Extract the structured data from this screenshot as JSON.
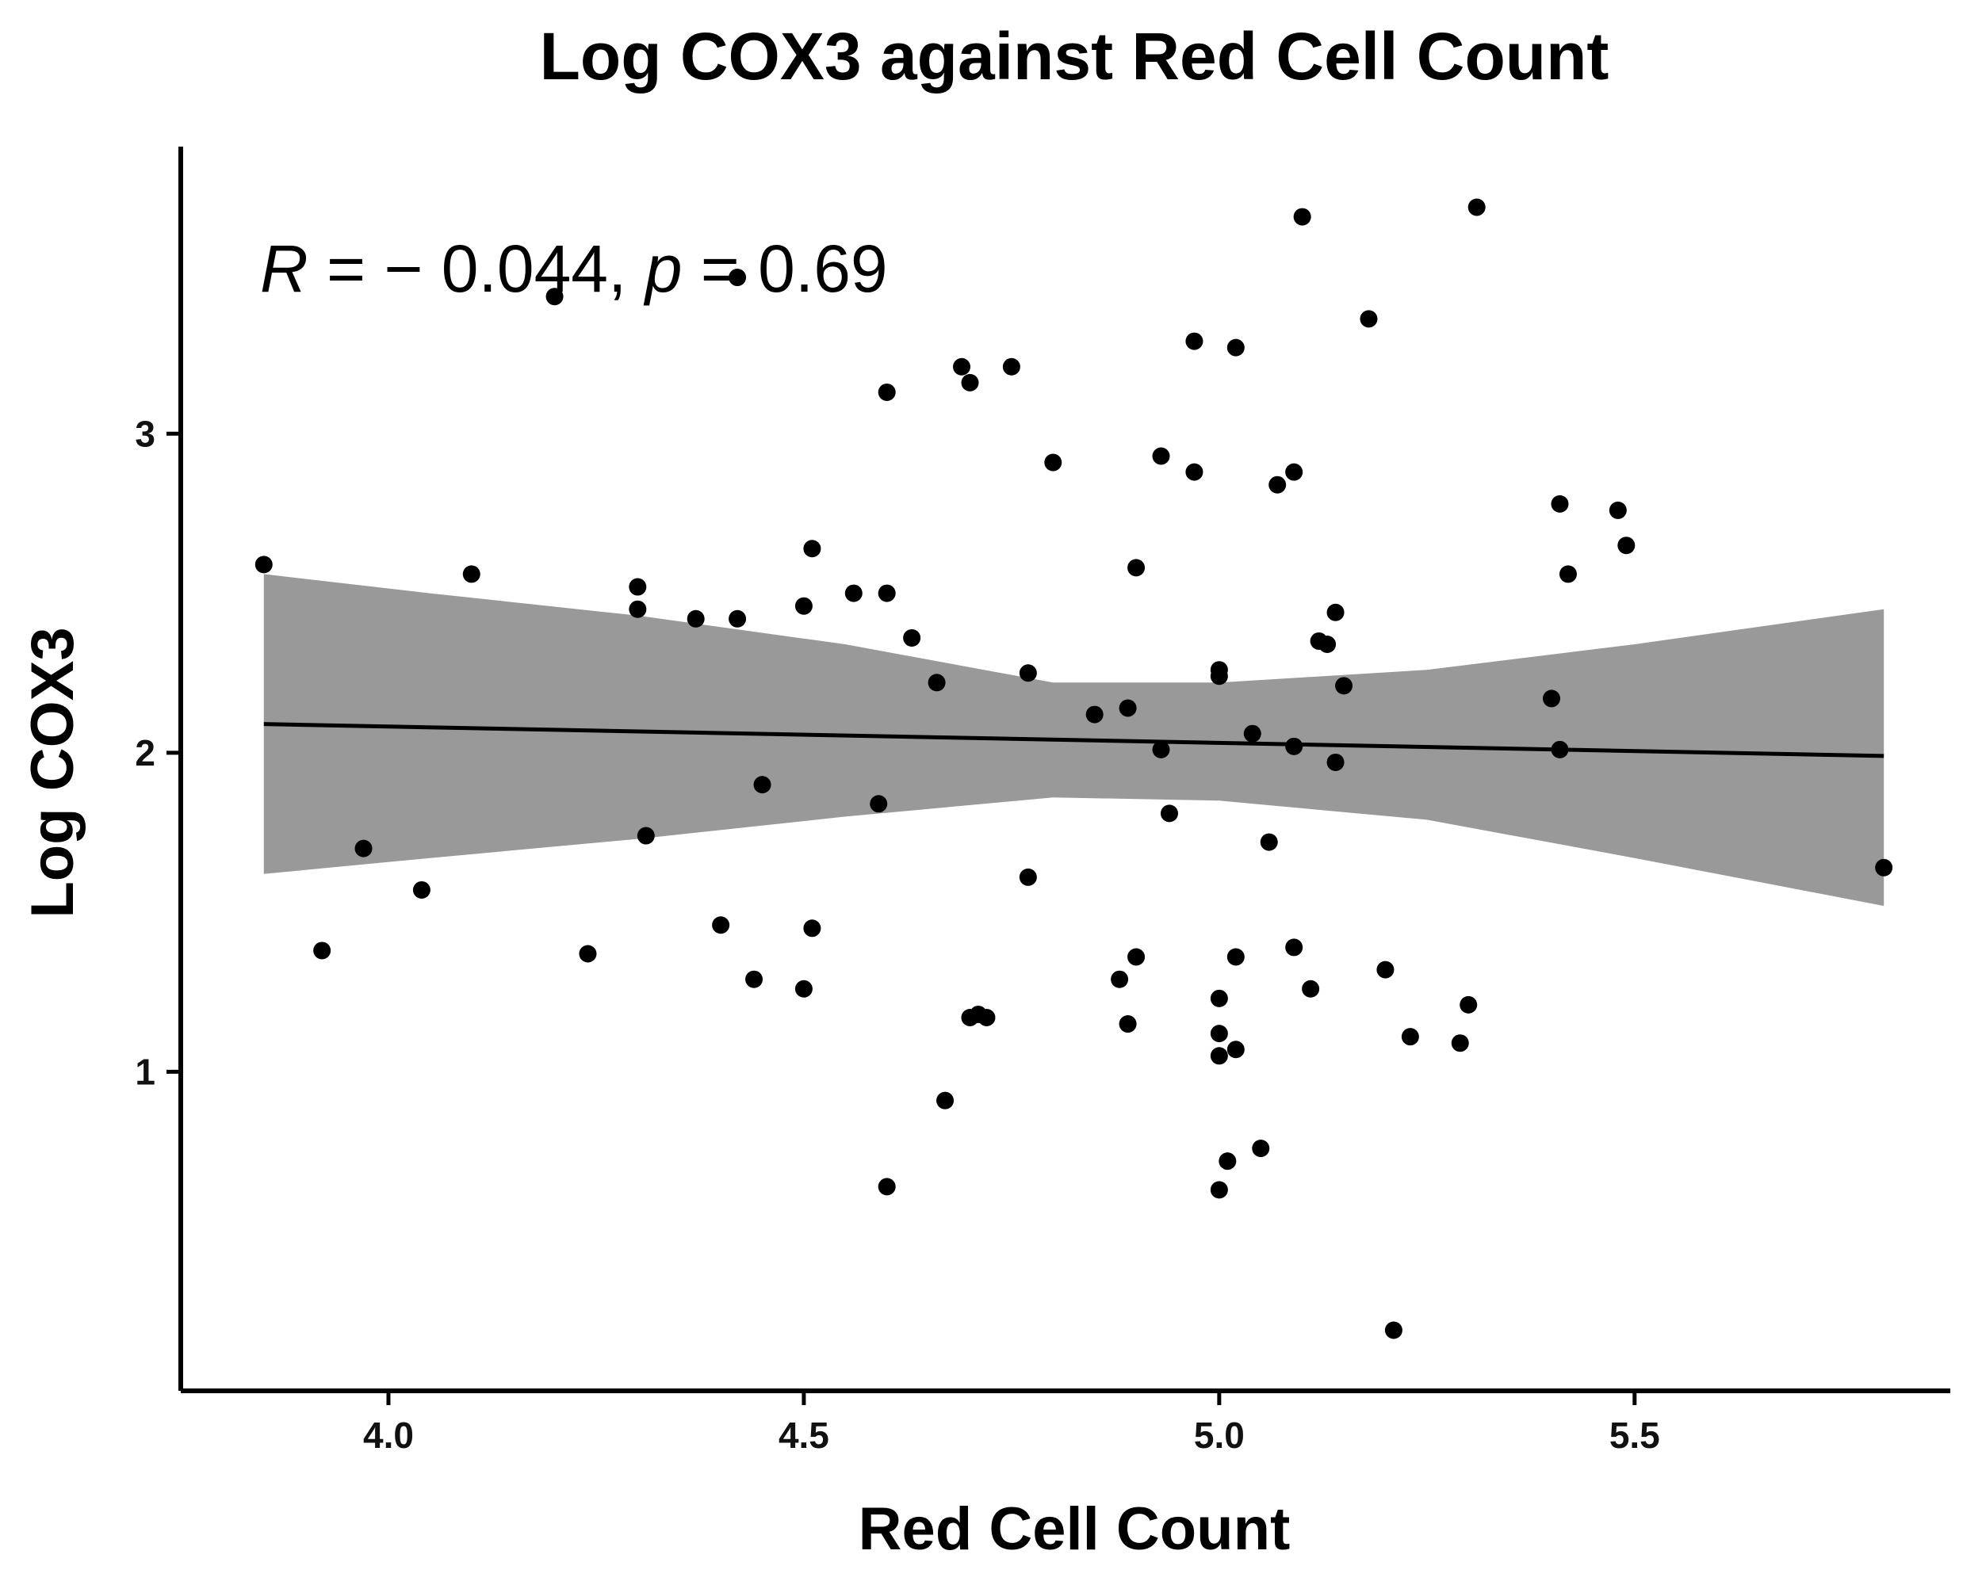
{
  "chart_data": {
    "type": "scatter",
    "title": "Log COX3 against Red Cell Count",
    "xlabel": "Red Cell Count",
    "ylabel": "Log COX3",
    "xlim": [
      3.75,
      5.88
    ],
    "ylim": [
      0.0,
      3.9
    ],
    "x_ticks": [
      4.0,
      4.5,
      5.0,
      5.5
    ],
    "x_tick_labels": [
      "4.0",
      "4.5",
      "5.0",
      "5.5"
    ],
    "y_ticks": [
      1,
      2,
      3
    ],
    "y_tick_labels": [
      "1",
      "2",
      "3"
    ],
    "grid": false,
    "annotation": {
      "r_symbol": "R",
      "r_text": " = − 0.044, ",
      "p_symbol": "p",
      "p_text": " = 0.69"
    },
    "points": [
      [
        3.85,
        2.59
      ],
      [
        3.92,
        1.38
      ],
      [
        3.97,
        1.7
      ],
      [
        4.04,
        1.57
      ],
      [
        4.1,
        2.56
      ],
      [
        4.2,
        3.43
      ],
      [
        4.24,
        1.37
      ],
      [
        4.3,
        2.52
      ],
      [
        4.3,
        2.45
      ],
      [
        4.31,
        1.74
      ],
      [
        4.37,
        2.42
      ],
      [
        4.4,
        1.46
      ],
      [
        4.42,
        2.42
      ],
      [
        4.42,
        3.49
      ],
      [
        4.44,
        1.29
      ],
      [
        4.45,
        1.9
      ],
      [
        4.5,
        2.46
      ],
      [
        4.5,
        1.26
      ],
      [
        4.51,
        2.64
      ],
      [
        4.51,
        1.45
      ],
      [
        4.56,
        2.5
      ],
      [
        4.59,
        1.84
      ],
      [
        4.6,
        3.13
      ],
      [
        4.6,
        2.5
      ],
      [
        4.6,
        0.64
      ],
      [
        4.63,
        2.36
      ],
      [
        4.66,
        2.22
      ],
      [
        4.67,
        0.91
      ],
      [
        4.69,
        3.21
      ],
      [
        4.7,
        3.16
      ],
      [
        4.7,
        1.17
      ],
      [
        4.71,
        1.18
      ],
      [
        4.72,
        1.17
      ],
      [
        4.75,
        3.21
      ],
      [
        4.77,
        2.25
      ],
      [
        4.77,
        1.61
      ],
      [
        4.8,
        2.91
      ],
      [
        4.85,
        2.12
      ],
      [
        4.88,
        1.29
      ],
      [
        4.89,
        2.14
      ],
      [
        4.89,
        1.15
      ],
      [
        4.9,
        2.58
      ],
      [
        4.9,
        1.36
      ],
      [
        4.93,
        2.93
      ],
      [
        4.93,
        2.01
      ],
      [
        4.94,
        1.81
      ],
      [
        4.97,
        3.29
      ],
      [
        4.97,
        2.88
      ],
      [
        5.0,
        2.26
      ],
      [
        5.0,
        2.24
      ],
      [
        5.0,
        1.23
      ],
      [
        5.0,
        1.12
      ],
      [
        5.0,
        1.05
      ],
      [
        5.0,
        0.63
      ],
      [
        5.01,
        0.72
      ],
      [
        5.02,
        3.27
      ],
      [
        5.02,
        1.36
      ],
      [
        5.02,
        1.07
      ],
      [
        5.04,
        2.06
      ],
      [
        5.05,
        0.76
      ],
      [
        5.06,
        1.72
      ],
      [
        5.07,
        2.84
      ],
      [
        5.09,
        2.88
      ],
      [
        5.09,
        2.02
      ],
      [
        5.09,
        1.39
      ],
      [
        5.1,
        3.68
      ],
      [
        5.11,
        1.26
      ],
      [
        5.12,
        2.35
      ],
      [
        5.13,
        2.34
      ],
      [
        5.14,
        2.44
      ],
      [
        5.14,
        1.97
      ],
      [
        5.15,
        2.21
      ],
      [
        5.18,
        3.36
      ],
      [
        5.2,
        1.32
      ],
      [
        5.21,
        0.19
      ],
      [
        5.23,
        1.11
      ],
      [
        5.29,
        1.09
      ],
      [
        5.3,
        1.21
      ],
      [
        5.31,
        3.71
      ],
      [
        5.4,
        2.17
      ],
      [
        5.41,
        2.78
      ],
      [
        5.41,
        2.01
      ],
      [
        5.42,
        2.56
      ],
      [
        5.48,
        2.76
      ],
      [
        5.49,
        2.65
      ],
      [
        5.8,
        1.64
      ]
    ],
    "regression": {
      "x_start": 3.85,
      "x_end": 5.8,
      "y_start": 2.09,
      "y_end": 1.99,
      "band": [
        {
          "x": 3.85,
          "lower": 1.62,
          "upper": 2.56
        },
        {
          "x": 4.05,
          "lower": 1.67,
          "upper": 2.5
        },
        {
          "x": 4.3,
          "lower": 1.73,
          "upper": 2.43
        },
        {
          "x": 4.55,
          "lower": 1.8,
          "upper": 2.34
        },
        {
          "x": 4.8,
          "lower": 1.86,
          "upper": 2.22
        },
        {
          "x": 5.0,
          "lower": 1.85,
          "upper": 2.22
        },
        {
          "x": 5.25,
          "lower": 1.79,
          "upper": 2.26
        },
        {
          "x": 5.5,
          "lower": 1.67,
          "upper": 2.34
        },
        {
          "x": 5.8,
          "lower": 1.52,
          "upper": 2.45
        }
      ]
    },
    "colors": {
      "points": "#000000",
      "line": "#000000",
      "band": "#999999",
      "axis": "#000000"
    }
  }
}
